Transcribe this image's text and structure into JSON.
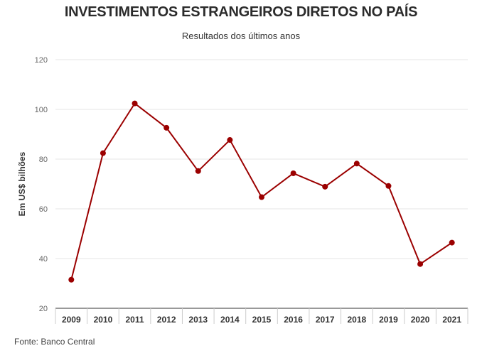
{
  "chart_data": {
    "type": "line",
    "title": "INVESTIMENTOS ESTRANGEIROS DIRETOS NO PAÍS",
    "subtitle": "Resultados dos últimos anos",
    "ylabel": "Em US$ bilhões",
    "xlabel": "",
    "source": "Fonte: Banco Central",
    "categories": [
      "2009",
      "2010",
      "2011",
      "2012",
      "2013",
      "2014",
      "2015",
      "2016",
      "2017",
      "2018",
      "2019",
      "2020",
      "2021"
    ],
    "values": [
      31.5,
      82.4,
      102.4,
      92.6,
      75.2,
      87.7,
      64.7,
      74.3,
      68.9,
      78.2,
      69.2,
      37.8,
      46.4
    ],
    "yticks": [
      "120",
      "100",
      "80",
      "60",
      "40",
      "20"
    ],
    "ylim": [
      20,
      120
    ],
    "grid": true,
    "line_color": "#9b0000"
  }
}
